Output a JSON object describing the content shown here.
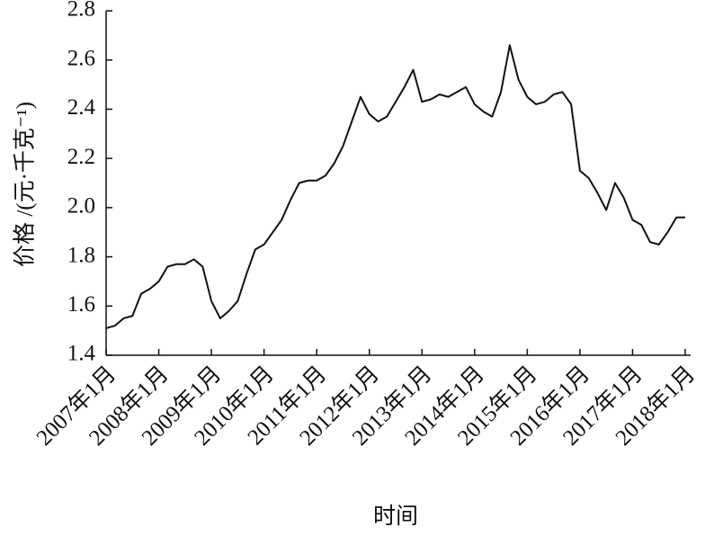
{
  "chart_data": {
    "type": "line",
    "xlabel": "时间",
    "ylabel": "价格 /(元·千克⁻¹)",
    "categories": [
      "2007年1月",
      null,
      null,
      null,
      null,
      null,
      "2008年1月",
      null,
      null,
      null,
      null,
      null,
      "2009年1月",
      null,
      null,
      null,
      null,
      null,
      "2010年1月",
      null,
      null,
      null,
      null,
      null,
      "2011年1月",
      null,
      null,
      null,
      null,
      null,
      "2012年1月",
      null,
      null,
      null,
      null,
      null,
      "2013年1月",
      null,
      null,
      null,
      null,
      null,
      "2014年1月",
      null,
      null,
      null,
      null,
      null,
      "2015年1月",
      null,
      null,
      null,
      null,
      null,
      "2016年1月",
      null,
      null,
      null,
      null,
      null,
      "2017年1月",
      null,
      null,
      null,
      null,
      null,
      "2018年1月"
    ],
    "values": [
      1.51,
      1.52,
      1.55,
      1.56,
      1.65,
      1.67,
      1.7,
      1.76,
      1.77,
      1.77,
      1.79,
      1.76,
      1.62,
      1.55,
      1.58,
      1.62,
      1.73,
      1.83,
      1.85,
      1.9,
      1.95,
      2.03,
      2.1,
      2.11,
      2.11,
      2.13,
      2.18,
      2.25,
      2.35,
      2.45,
      2.38,
      2.35,
      2.37,
      2.43,
      2.49,
      2.56,
      2.43,
      2.44,
      2.46,
      2.45,
      2.47,
      2.49,
      2.42,
      2.39,
      2.37,
      2.47,
      2.66,
      2.52,
      2.45,
      2.42,
      2.43,
      2.46,
      2.47,
      2.42,
      2.15,
      2.12,
      2.06,
      1.99,
      2.1,
      2.04,
      1.95,
      1.93,
      1.86,
      1.85,
      1.9,
      1.96,
      1.96
    ],
    "color": "#111111",
    "ylim": [
      1.4,
      2.8
    ],
    "yticks": [
      {
        "value": 1.4,
        "label": "1.4"
      },
      {
        "value": 1.6,
        "label": "1.6"
      },
      {
        "value": 1.8,
        "label": "1.8"
      },
      {
        "value": 2.0,
        "label": "2.0"
      },
      {
        "value": 2.2,
        "label": "2.2"
      },
      {
        "value": 2.4,
        "label": "2.4"
      },
      {
        "value": 2.6,
        "label": "2.6"
      },
      {
        "value": 2.8,
        "label": "2.8"
      }
    ],
    "grid": false
  }
}
